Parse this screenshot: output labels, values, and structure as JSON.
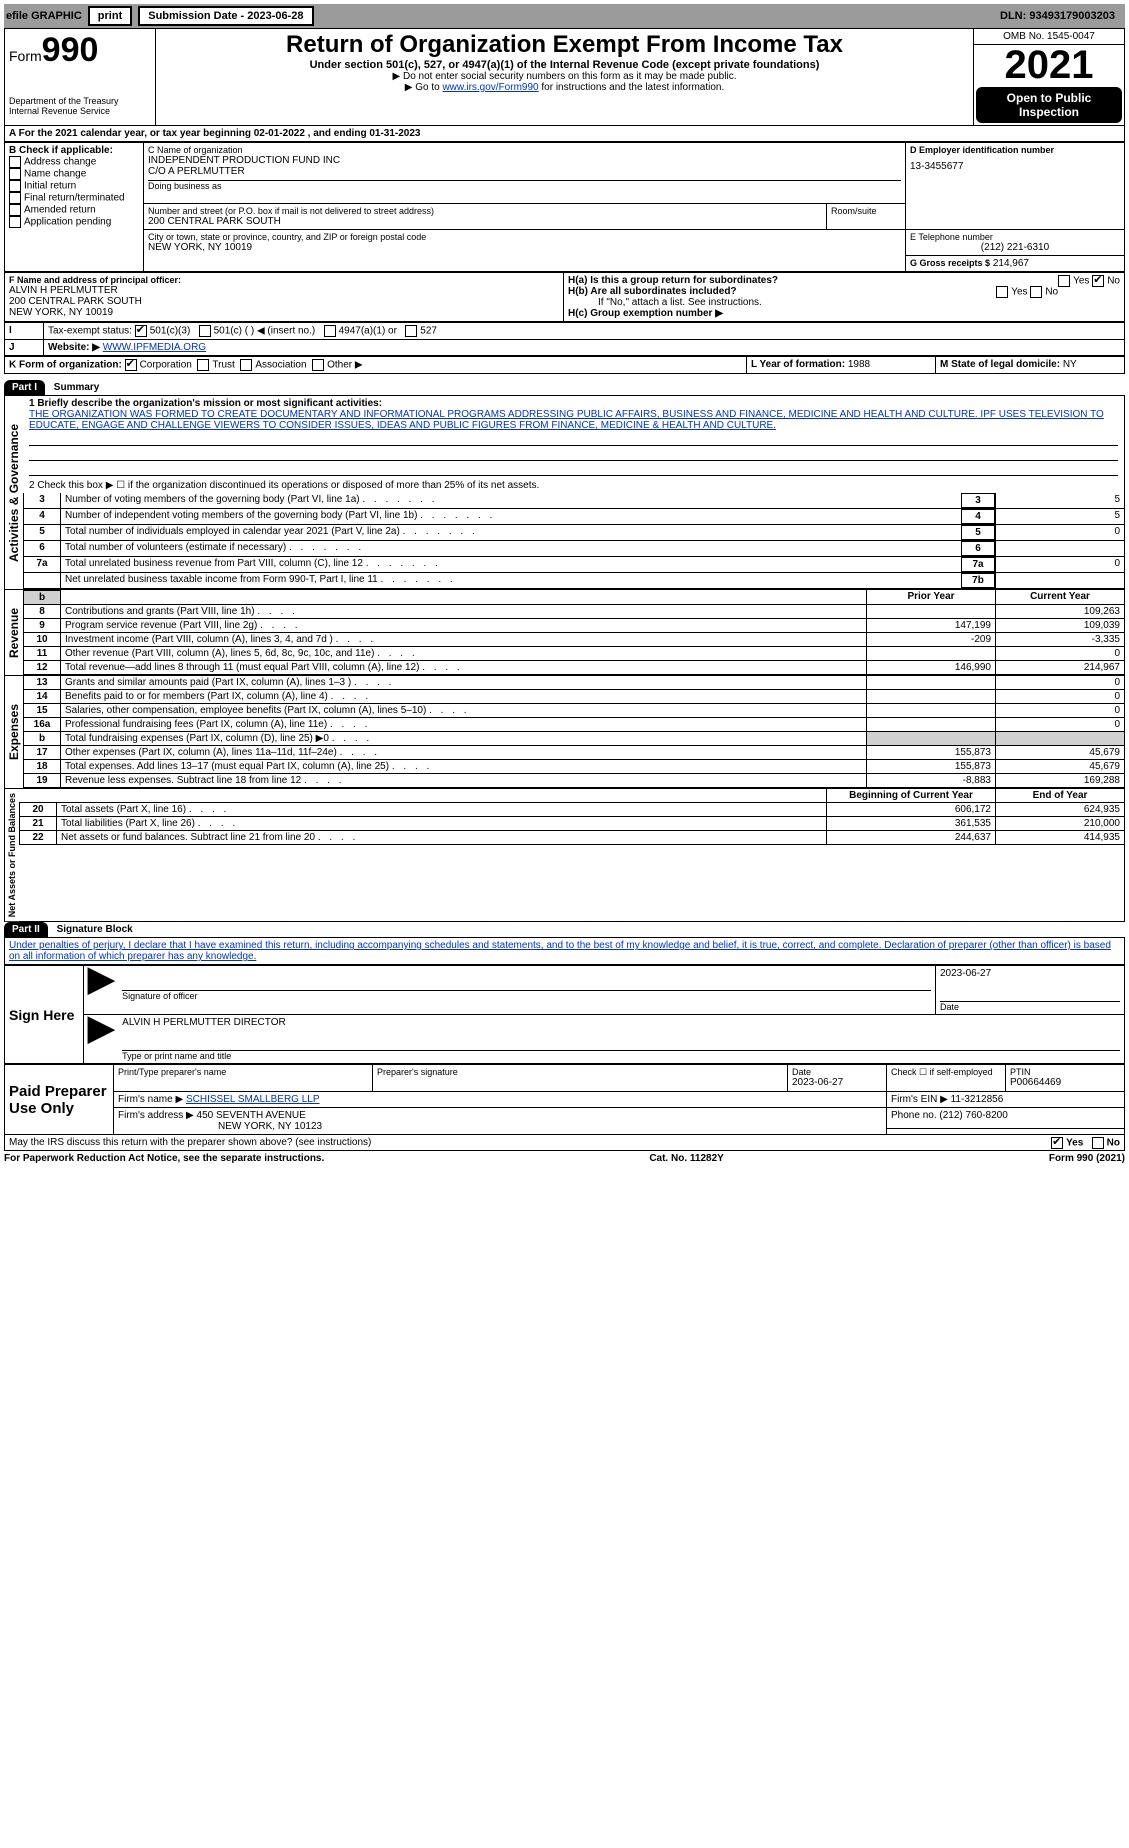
{
  "topbar": {
    "efile": "efile GRAPHIC",
    "print": "print",
    "subdate_label": "Submission Date - 2023-06-28",
    "dln": "DLN: 93493179003203"
  },
  "header": {
    "form_label": "Form",
    "form_num": "990",
    "title": "Return of Organization Exempt From Income Tax",
    "subtitle": "Under section 501(c), 527, or 4947(a)(1) of the Internal Revenue Code (except private foundations)",
    "note1": "▶ Do not enter social security numbers on this form as it may be made public.",
    "note2_pre": "▶ Go to ",
    "note2_link": "www.irs.gov/Form990",
    "note2_post": " for instructions and the latest information.",
    "dept": "Department of the Treasury",
    "irs": "Internal Revenue Service",
    "omb": "OMB No. 1545-0047",
    "year": "2021",
    "inspect": "Open to Public Inspection"
  },
  "period": {
    "line": "For the 2021 calendar year, or tax year beginning 02-01-2022    , and ending 01-31-2023"
  },
  "boxB": {
    "label": "B Check if applicable:",
    "items": [
      "Address change",
      "Name change",
      "Initial return",
      "Final return/terminated",
      "Amended return",
      "Application pending"
    ]
  },
  "boxC": {
    "name_label": "C Name of organization",
    "name": "INDEPENDENT PRODUCTION FUND INC",
    "co": "C/O A PERLMUTTER",
    "dba_label": "Doing business as",
    "addr_label": "Number and street (or P.O. box if mail is not delivered to street address)",
    "room_label": "Room/suite",
    "addr": "200 CENTRAL PARK SOUTH",
    "city_label": "City or town, state or province, country, and ZIP or foreign postal code",
    "city": "NEW YORK, NY  10019"
  },
  "boxD": {
    "label": "D Employer identification number",
    "value": "13-3455677"
  },
  "boxE": {
    "label": "E Telephone number",
    "value": "(212) 221-6310"
  },
  "boxG": {
    "label": "G Gross receipts $",
    "value": "214,967"
  },
  "boxF": {
    "label": "F  Name and address of principal officer:",
    "name": "ALVIN H PERLMUTTER",
    "addr": "200 CENTRAL PARK SOUTH",
    "city": "NEW YORK, NY  10019"
  },
  "boxH": {
    "ha": "H(a)  Is this a group return for subordinates?",
    "hb": "H(b)  Are all subordinates included?",
    "note": "If \"No,\" attach a list. See instructions.",
    "hc": "H(c)  Group exemption number ▶"
  },
  "boxI": {
    "label": "Tax-exempt status:",
    "c3": "501(c)(3)",
    "c": "501(c) ( ) ◀ (insert no.)",
    "a": "4947(a)(1) or",
    "s": "527"
  },
  "boxJ": {
    "label": "Website: ▶",
    "value": "WWW.IPFMEDIA.ORG"
  },
  "boxK": {
    "label": "K Form of organization:",
    "corp": "Corporation",
    "trust": "Trust",
    "assoc": "Association",
    "other": "Other ▶"
  },
  "boxL": {
    "label": "L Year of formation:",
    "value": "1988"
  },
  "boxM": {
    "label": "M State of legal domicile:",
    "value": "NY"
  },
  "part1": {
    "hdr": "Part I",
    "title": "Summary",
    "q1_label": "1  Briefly describe the organization's mission or most significant activities:",
    "q1_text": "THE ORGANIZATION WAS FORMED TO CREATE DOCUMENTARY AND INFORMATIONAL PROGRAMS ADDRESSING PUBLIC AFFAIRS, BUSINESS AND FINANCE, MEDICINE AND HEALTH AND CULTURE. IPF USES TELEVISION TO EDUCATE, ENGAGE AND CHALLENGE VIEWERS TO CONSIDER ISSUES, IDEAS AND PUBLIC FIGURES FROM FINANCE, MEDICINE & HEALTH AND CULTURE.",
    "q2": "2   Check this box ▶ ☐  if the organization discontinued its operations or disposed of more than 25% of its net assets.",
    "rows_gov": [
      {
        "n": "3",
        "t": "Number of voting members of the governing body (Part VI, line 1a)",
        "box": "3",
        "v": "5"
      },
      {
        "n": "4",
        "t": "Number of independent voting members of the governing body (Part VI, line 1b)",
        "box": "4",
        "v": "5"
      },
      {
        "n": "5",
        "t": "Total number of individuals employed in calendar year 2021 (Part V, line 2a)",
        "box": "5",
        "v": "0"
      },
      {
        "n": "6",
        "t": "Total number of volunteers (estimate if necessary)",
        "box": "6",
        "v": ""
      },
      {
        "n": "7a",
        "t": "Total unrelated business revenue from Part VIII, column (C), line 12",
        "box": "7a",
        "v": "0"
      },
      {
        "n": "",
        "t": "Net unrelated business taxable income from Form 990-T, Part I, line 11",
        "box": "7b",
        "v": ""
      }
    ],
    "prior_hdr": "Prior Year",
    "curr_hdr": "Current Year",
    "revenue": [
      {
        "n": "8",
        "t": "Contributions and grants (Part VIII, line 1h)",
        "p": "",
        "c": "109,263"
      },
      {
        "n": "9",
        "t": "Program service revenue (Part VIII, line 2g)",
        "p": "147,199",
        "c": "109,039"
      },
      {
        "n": "10",
        "t": "Investment income (Part VIII, column (A), lines 3, 4, and 7d )",
        "p": "-209",
        "c": "-3,335"
      },
      {
        "n": "11",
        "t": "Other revenue (Part VIII, column (A), lines 5, 6d, 8c, 9c, 10c, and 11e)",
        "p": "",
        "c": "0"
      },
      {
        "n": "12",
        "t": "Total revenue—add lines 8 through 11 (must equal Part VIII, column (A), line 12)",
        "p": "146,990",
        "c": "214,967"
      }
    ],
    "expenses": [
      {
        "n": "13",
        "t": "Grants and similar amounts paid (Part IX, column (A), lines 1–3 )",
        "p": "",
        "c": "0"
      },
      {
        "n": "14",
        "t": "Benefits paid to or for members (Part IX, column (A), line 4)",
        "p": "",
        "c": "0"
      },
      {
        "n": "15",
        "t": "Salaries, other compensation, employee benefits (Part IX, column (A), lines 5–10)",
        "p": "",
        "c": "0"
      },
      {
        "n": "16a",
        "t": "Professional fundraising fees (Part IX, column (A), line 11e)",
        "p": "",
        "c": "0"
      },
      {
        "n": "b",
        "t": "Total fundraising expenses (Part IX, column (D), line 25) ▶0",
        "p": "grey",
        "c": "grey"
      },
      {
        "n": "17",
        "t": "Other expenses (Part IX, column (A), lines 11a–11d, 11f–24e)",
        "p": "155,873",
        "c": "45,679"
      },
      {
        "n": "18",
        "t": "Total expenses. Add lines 13–17 (must equal Part IX, column (A), line 25)",
        "p": "155,873",
        "c": "45,679"
      },
      {
        "n": "19",
        "t": "Revenue less expenses. Subtract line 18 from line 12",
        "p": "-8,883",
        "c": "169,288"
      }
    ],
    "beg_hdr": "Beginning of Current Year",
    "end_hdr": "End of Year",
    "netassets": [
      {
        "n": "20",
        "t": "Total assets (Part X, line 16)",
        "p": "606,172",
        "c": "624,935"
      },
      {
        "n": "21",
        "t": "Total liabilities (Part X, line 26)",
        "p": "361,535",
        "c": "210,000"
      },
      {
        "n": "22",
        "t": "Net assets or fund balances. Subtract line 21 from line 20",
        "p": "244,637",
        "c": "414,935"
      }
    ],
    "vlabels": {
      "gov": "Activities & Governance",
      "rev": "Revenue",
      "exp": "Expenses",
      "net": "Net Assets or Fund Balances"
    }
  },
  "part2": {
    "hdr": "Part II",
    "title": "Signature Block",
    "decl": "Under penalties of perjury, I declare that I have examined this return, including accompanying schedules and statements, and to the best of my knowledge and belief, it is true, correct, and complete. Declaration of preparer (other than officer) is based on all information of which preparer has any knowledge.",
    "sign_here": "Sign Here",
    "sig_officer": "Signature of officer",
    "sig_date": "2023-06-27",
    "date_lbl": "Date",
    "name_title": "ALVIN H PERLMUTTER  DIRECTOR",
    "type_name": "Type or print name and title",
    "paid": "Paid Preparer Use Only",
    "prep_name_lbl": "Print/Type preparer's name",
    "prep_sig_lbl": "Preparer's signature",
    "prep_date": "2023-06-27",
    "check_self": "Check ☐ if self-employed",
    "ptin_lbl": "PTIN",
    "ptin": "P00664469",
    "firm_name_lbl": "Firm's name    ▶",
    "firm_name": "SCHISSEL SMALLBERG LLP",
    "firm_ein_lbl": "Firm's EIN ▶",
    "firm_ein": "11-3212856",
    "firm_addr_lbl": "Firm's address ▶",
    "firm_addr": "450 SEVENTH AVENUE",
    "firm_city": "NEW YORK, NY  10123",
    "phone_lbl": "Phone no.",
    "phone": "(212) 760-8200",
    "discuss": "May the IRS discuss this return with the preparer shown above? (see instructions)",
    "yes": "Yes",
    "no": "No",
    "paperwork": "For Paperwork Reduction Act Notice, see the separate instructions.",
    "cat": "Cat. No. 11282Y",
    "formfoot": "Form 990 (2021)"
  }
}
